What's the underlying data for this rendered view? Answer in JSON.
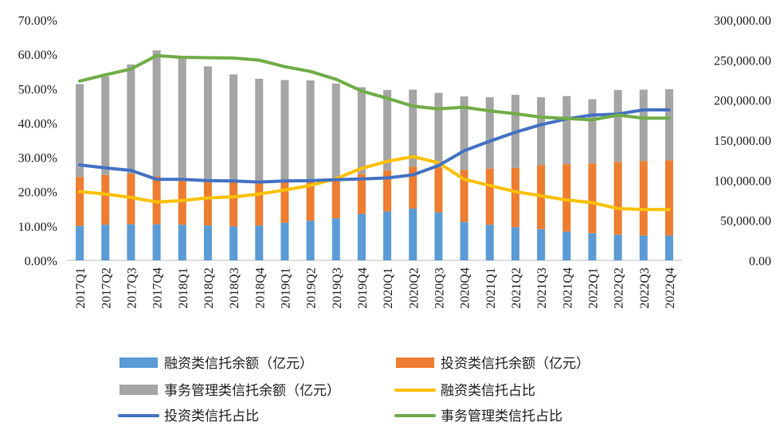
{
  "chart_data": {
    "type": "bar+line",
    "categories": [
      "2017Q1",
      "2017Q2",
      "2017Q3",
      "2017Q4",
      "2018Q1",
      "2018Q2",
      "2018Q3",
      "2018Q4",
      "2019Q1",
      "2019Q2",
      "2019Q3",
      "2019Q4",
      "2020Q1",
      "2020Q2",
      "2020Q3",
      "2020Q4",
      "2021Q1",
      "2021Q2",
      "2021Q3",
      "2021Q4",
      "2022Q1",
      "2022Q2",
      "2022Q3",
      "2022Q4"
    ],
    "left_axis": {
      "min": 0,
      "max": 70,
      "ticks": [
        "0.00%",
        "10.00%",
        "20.00%",
        "30.00%",
        "40.00%",
        "50.00%",
        "60.00%",
        "70.00%"
      ]
    },
    "right_axis": {
      "min": 0,
      "max": 300000,
      "ticks": [
        "0.00",
        "50,000.00",
        "100,000.00",
        "150,000.00",
        "200,000.00",
        "250,000.00",
        "300,000.00"
      ]
    },
    "bar_series": [
      {
        "name": "融资类信托余额（亿元）",
        "color": "#5B9BD5",
        "values": [
          43000,
          44500,
          45000,
          45000,
          44500,
          43500,
          42500,
          43500,
          47000,
          49500,
          52500,
          58000,
          61000,
          64500,
          60000,
          48000,
          44500,
          41500,
          39000,
          36000,
          34000,
          32000,
          31000,
          31000
        ]
      },
      {
        "name": "投资类信托余额（亿元）",
        "color": "#ED7D31",
        "values": [
          61000,
          62000,
          63500,
          60000,
          55500,
          56500,
          57000,
          56000,
          52000,
          50000,
          49500,
          50000,
          51500,
          52500,
          56000,
          65000,
          70000,
          74000,
          80000,
          84000,
          87000,
          91000,
          93000,
          94000
        ]
      },
      {
        "name": "事务管理类信托余额（亿元）",
        "color": "#A5A5A5",
        "values": [
          116000,
          123000,
          136000,
          157000,
          153500,
          142000,
          132500,
          127000,
          126000,
          125000,
          118500,
          108000,
          100000,
          96000,
          93000,
          91500,
          89000,
          91000,
          84500,
          85000,
          80000,
          89500,
          89000,
          88500
        ]
      }
    ],
    "line_series": [
      {
        "name": "融资类信托占比",
        "color": "#FFC000",
        "values": [
          20.0,
          19.3,
          18.3,
          17.0,
          17.4,
          18.2,
          18.5,
          19.3,
          20.5,
          21.8,
          23.8,
          26.8,
          28.8,
          30.2,
          28.4,
          23.6,
          21.8,
          20.0,
          18.8,
          17.6,
          16.8,
          15.1,
          14.8,
          14.8
        ]
      },
      {
        "name": "投资类信托占比",
        "color": "#4472C4",
        "values": [
          27.8,
          26.9,
          26.2,
          23.6,
          23.6,
          23.2,
          23.1,
          22.8,
          23.1,
          23.2,
          23.5,
          23.7,
          24.0,
          24.9,
          27.6,
          31.9,
          34.7,
          37.3,
          39.5,
          41.2,
          42.3,
          42.6,
          43.8,
          43.8
        ]
      },
      {
        "name": "事务管理类信托占比",
        "color": "#70AD47",
        "values": [
          52.2,
          54.0,
          55.7,
          59.6,
          59.1,
          59.0,
          58.9,
          58.3,
          56.4,
          55.0,
          52.7,
          49.3,
          47.2,
          44.9,
          44.1,
          44.6,
          43.5,
          42.7,
          41.7,
          41.3,
          40.9,
          42.3,
          41.4,
          41.4
        ]
      }
    ],
    "legend": [
      {
        "label": "融资类信托余额（亿元）",
        "kind": "rect",
        "color": "#5B9BD5"
      },
      {
        "label": "投资类信托余额（亿元）",
        "kind": "rect",
        "color": "#ED7D31"
      },
      {
        "label": "事务管理类信托余额（亿元）",
        "kind": "rect",
        "color": "#A5A5A5"
      },
      {
        "label": "融资类信托占比",
        "kind": "line",
        "color": "#FFC000"
      },
      {
        "label": "投资类信托占比",
        "kind": "line",
        "color": "#4472C4"
      },
      {
        "label": "事务管理类信托占比",
        "kind": "line",
        "color": "#70AD47"
      }
    ],
    "grid": false,
    "legend_position": "bottom"
  }
}
